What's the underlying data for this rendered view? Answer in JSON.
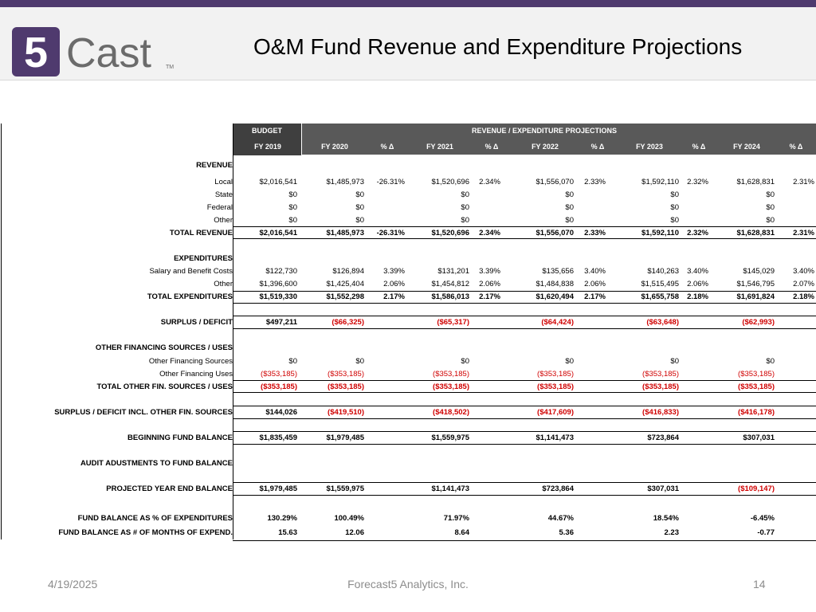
{
  "slide": {
    "title": "O&M Fund Revenue and Expenditure Projections",
    "logo_text": "Cast",
    "logo_digit": "5",
    "logo_tm": "TM",
    "accent_color": "#4f3a6e"
  },
  "table": {
    "budget_label": "BUDGET",
    "projections_label": "REVENUE / EXPENDITURE PROJECTIONS",
    "columns": [
      "FY 2019",
      "FY 2020",
      "% Δ",
      "FY 2021",
      "% Δ",
      "FY 2022",
      "% Δ",
      "FY 2023",
      "% Δ",
      "FY 2024",
      "% Δ"
    ],
    "rows": [
      {
        "label": "REVENUE",
        "bold": true,
        "values": [
          "",
          "",
          "",
          "",
          "",
          "",
          "",
          "",
          "",
          "",
          ""
        ]
      },
      {
        "label": "Local",
        "bold": false,
        "values": [
          "$2,016,541",
          "$1,485,973",
          "-26.31%",
          "$1,520,696",
          "2.34%",
          "$1,556,070",
          "2.33%",
          "$1,592,110",
          "2.32%",
          "$1,628,831",
          "2.31%"
        ]
      },
      {
        "label": "State",
        "bold": false,
        "values": [
          "$0",
          "$0",
          "",
          "$0",
          "",
          "$0",
          "",
          "$0",
          "",
          "$0",
          ""
        ]
      },
      {
        "label": "Federal",
        "bold": false,
        "values": [
          "$0",
          "$0",
          "",
          "$0",
          "",
          "$0",
          "",
          "$0",
          "",
          "$0",
          ""
        ]
      },
      {
        "label": "Other",
        "bold": false,
        "values": [
          "$0",
          "$0",
          "",
          "$0",
          "",
          "$0",
          "",
          "$0",
          "",
          "$0",
          ""
        ]
      },
      {
        "label": "TOTAL REVENUE",
        "bold": true,
        "values": [
          "$2,016,541",
          "$1,485,973",
          "-26.31%",
          "$1,520,696",
          "2.34%",
          "$1,556,070",
          "2.33%",
          "$1,592,110",
          "2.32%",
          "$1,628,831",
          "2.31%"
        ]
      },
      {
        "label": "EXPENDITURES",
        "bold": true,
        "values": [
          "",
          "",
          "",
          "",
          "",
          "",
          "",
          "",
          "",
          "",
          ""
        ]
      },
      {
        "label": "Salary and Benefit Costs",
        "bold": false,
        "values": [
          "$122,730",
          "$126,894",
          "3.39%",
          "$131,201",
          "3.39%",
          "$135,656",
          "3.40%",
          "$140,263",
          "3.40%",
          "$145,029",
          "3.40%"
        ]
      },
      {
        "label": "Other",
        "bold": false,
        "values": [
          "$1,396,600",
          "$1,425,404",
          "2.06%",
          "$1,454,812",
          "2.06%",
          "$1,484,838",
          "2.06%",
          "$1,515,495",
          "2.06%",
          "$1,546,795",
          "2.07%"
        ]
      },
      {
        "label": "TOTAL EXPENDITURES",
        "bold": true,
        "values": [
          "$1,519,330",
          "$1,552,298",
          "2.17%",
          "$1,586,013",
          "2.17%",
          "$1,620,494",
          "2.17%",
          "$1,655,758",
          "2.18%",
          "$1,691,824",
          "2.18%"
        ]
      },
      {
        "label": "SURPLUS / DEFICIT",
        "bold": true,
        "values": [
          "$497,211",
          "($66,325)",
          "",
          "($65,317)",
          "",
          "($64,424)",
          "",
          "($63,648)",
          "",
          "($62,993)",
          ""
        ]
      },
      {
        "label": "OTHER FINANCING SOURCES / USES",
        "bold": true,
        "values": [
          "",
          "",
          "",
          "",
          "",
          "",
          "",
          "",
          "",
          "",
          ""
        ]
      },
      {
        "label": "Other Financing Sources",
        "bold": false,
        "values": [
          "$0",
          "$0",
          "",
          "$0",
          "",
          "$0",
          "",
          "$0",
          "",
          "$0",
          ""
        ]
      },
      {
        "label": "Other Financing Uses",
        "bold": false,
        "values": [
          "($353,185)",
          "($353,185)",
          "",
          "($353,185)",
          "",
          "($353,185)",
          "",
          "($353,185)",
          "",
          "($353,185)",
          ""
        ]
      },
      {
        "label": "TOTAL OTHER FIN. SOURCES / USES",
        "bold": true,
        "values": [
          "($353,185)",
          "($353,185)",
          "",
          "($353,185)",
          "",
          "($353,185)",
          "",
          "($353,185)",
          "",
          "($353,185)",
          ""
        ]
      },
      {
        "label": "SURPLUS / DEFICIT INCL. OTHER FIN. SOURCES",
        "bold": true,
        "values": [
          "$144,026",
          "($419,510)",
          "",
          "($418,502)",
          "",
          "($417,609)",
          "",
          "($416,833)",
          "",
          "($416,178)",
          ""
        ]
      },
      {
        "label": "BEGINNING FUND BALANCE",
        "bold": true,
        "values": [
          "$1,835,459",
          "$1,979,485",
          "",
          "$1,559,975",
          "",
          "$1,141,473",
          "",
          "$723,864",
          "",
          "$307,031",
          ""
        ]
      },
      {
        "label": "AUDIT ADUSTMENTS TO FUND BALANCE",
        "bold": true,
        "values": [
          "",
          "",
          "",
          "",
          "",
          "",
          "",
          "",
          "",
          "",
          ""
        ]
      },
      {
        "label": "PROJECTED YEAR END BALANCE",
        "bold": true,
        "values": [
          "$1,979,485",
          "$1,559,975",
          "",
          "$1,141,473",
          "",
          "$723,864",
          "",
          "$307,031",
          "",
          "($109,147)",
          ""
        ]
      },
      {
        "label": "FUND BALANCE AS % OF EXPENDITURES",
        "bold": true,
        "values": [
          "130.29%",
          "100.49%",
          "",
          "71.97%",
          "",
          "44.67%",
          "",
          "18.54%",
          "",
          "-6.45%",
          ""
        ]
      },
      {
        "label": "FUND BALANCE AS # OF MONTHS OF EXPEND.",
        "bold": true,
        "values": [
          "15.63",
          "12.06",
          "",
          "8.64",
          "",
          "5.36",
          "",
          "2.23",
          "",
          "-0.77",
          ""
        ]
      }
    ]
  },
  "footer": {
    "date": "4/19/2025",
    "company": "Forecast5 Analytics, Inc.",
    "page": "14"
  }
}
